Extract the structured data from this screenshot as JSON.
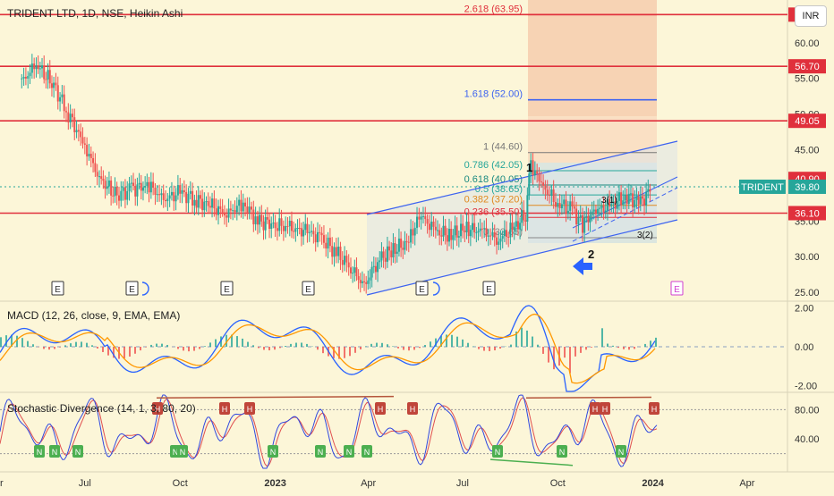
{
  "header": {
    "symbol_line": "TRIDENT LTD, 1D, NSE, Heikin Ashi",
    "currency_button": "INR"
  },
  "panes": {
    "macd_label": "MACD (12, 26, close, 9, EMA, EMA)",
    "stoch_label": "Stochastic Divergence (14, 1, 3, 80, 20)"
  },
  "colors": {
    "background": "#fcf6d8",
    "resistance_line": "#e0303c",
    "price_badge_red": "#e0303c",
    "ticker_badge": "#26a69a",
    "channel_blue": "#3d63f0",
    "macd_line": "#2962ff",
    "signal_line": "#ff9800",
    "hist_up": "#26a69a",
    "hist_down": "#ef5350",
    "stoch_k": "#3048e0",
    "stoch_d": "#e05050",
    "div_bull": "#4caf50",
    "div_bear": "#b5563c"
  },
  "chart_data": {
    "type": "candlestick",
    "symbol": "TRIDENT",
    "exchange": "NSE",
    "interval": "1D",
    "style": "Heikin Ashi",
    "currency": "INR",
    "x_ticks": [
      "Jul",
      "Oct",
      "2023",
      "Apr",
      "Jul",
      "Oct",
      "2024",
      "Apr"
    ],
    "y_ticks": [
      "60.00",
      "55.00",
      "50.00",
      "45.00",
      "40.00",
      "35.00",
      "30.00",
      "25.00"
    ],
    "ylim": [
      24,
      66
    ],
    "price_path": [
      {
        "date": "2022-05-01",
        "close": 54.5
      },
      {
        "date": "2022-05-15",
        "close": 57.0
      },
      {
        "date": "2022-06-01",
        "close": 54.0
      },
      {
        "date": "2022-06-15",
        "close": 50.0
      },
      {
        "date": "2022-07-01",
        "close": 45.5
      },
      {
        "date": "2022-07-15",
        "close": 41.0
      },
      {
        "date": "2022-08-01",
        "close": 38.5
      },
      {
        "date": "2022-08-15",
        "close": 39.5
      },
      {
        "date": "2022-09-01",
        "close": 40.0
      },
      {
        "date": "2022-09-15",
        "close": 38.0
      },
      {
        "date": "2022-10-01",
        "close": 39.0
      },
      {
        "date": "2022-10-15",
        "close": 38.0
      },
      {
        "date": "2022-11-01",
        "close": 37.0
      },
      {
        "date": "2022-11-15",
        "close": 36.0
      },
      {
        "date": "2022-12-01",
        "close": 37.5
      },
      {
        "date": "2022-12-15",
        "close": 35.0
      },
      {
        "date": "2023-01-01",
        "close": 34.5
      },
      {
        "date": "2023-01-15",
        "close": 34.0
      },
      {
        "date": "2023-02-01",
        "close": 33.5
      },
      {
        "date": "2023-02-15",
        "close": 32.5
      },
      {
        "date": "2023-03-01",
        "close": 30.5
      },
      {
        "date": "2023-03-15",
        "close": 28.5
      },
      {
        "date": "2023-03-28",
        "close": 25.8
      },
      {
        "date": "2023-04-10",
        "close": 29.5
      },
      {
        "date": "2023-04-25",
        "close": 31.0
      },
      {
        "date": "2023-05-10",
        "close": 32.0
      },
      {
        "date": "2023-05-20",
        "close": 36.0
      },
      {
        "date": "2023-06-05",
        "close": 33.5
      },
      {
        "date": "2023-06-20",
        "close": 33.0
      },
      {
        "date": "2023-07-05",
        "close": 34.0
      },
      {
        "date": "2023-07-20",
        "close": 33.5
      },
      {
        "date": "2023-08-05",
        "close": 32.5
      },
      {
        "date": "2023-08-20",
        "close": 34.0
      },
      {
        "date": "2023-08-31",
        "close": 36.0
      },
      {
        "date": "2023-09-05",
        "close": 43.0
      },
      {
        "date": "2023-09-15",
        "close": 40.0
      },
      {
        "date": "2023-10-01",
        "close": 37.5
      },
      {
        "date": "2023-10-15",
        "close": 36.5
      },
      {
        "date": "2023-10-25",
        "close": 34.5
      },
      {
        "date": "2023-11-05",
        "close": 36.5
      },
      {
        "date": "2023-11-20",
        "close": 37.0
      },
      {
        "date": "2023-12-05",
        "close": 38.5
      },
      {
        "date": "2023-12-20",
        "close": 37.5
      },
      {
        "date": "2023-12-31",
        "close": 39.8
      }
    ],
    "last_price": "39.80",
    "horizontal_levels": [
      {
        "label": "63.95",
        "value": 63.95
      },
      {
        "label": "56.70",
        "value": 56.7
      },
      {
        "label": "49.05",
        "value": 49.05
      },
      {
        "label": "36.10",
        "value": 36.1
      }
    ],
    "price_badges": [
      "63.95",
      "56.70",
      "49.05",
      "40.90",
      "39.80",
      "36.10"
    ],
    "ticker_badge": "TRIDENT",
    "fibonacci": [
      {
        "label": "2.618 (63.95)",
        "ratio": 2.618,
        "price": 63.95
      },
      {
        "label": "1.618 (52.00)",
        "ratio": 1.618,
        "price": 52.0
      },
      {
        "label": "1 (44.60)",
        "ratio": 1,
        "price": 44.6
      },
      {
        "label": "0.786 (42.05)",
        "ratio": 0.786,
        "price": 42.05
      },
      {
        "label": "0.618 (40.05)",
        "ratio": 0.618,
        "price": 40.05
      },
      {
        "label": "0.5 (38.65)",
        "ratio": 0.5,
        "price": 38.65
      },
      {
        "label": "0.382 (37.20)",
        "ratio": 0.382,
        "price": 37.2
      },
      {
        "label": "0.236 (35.50)",
        "ratio": 0.236,
        "price": 35.5
      },
      {
        "label": "0 (32.65)",
        "ratio": 0,
        "price": 32.65
      }
    ],
    "wave_labels": [
      "1",
      "2",
      "3(1)",
      "3(2)"
    ],
    "earnings_markers": [
      "E",
      "E",
      "E",
      "E",
      "E",
      "E",
      "E"
    ],
    "macd": {
      "title": "MACD (12, 26, close, 9, EMA, EMA)",
      "y_ticks": [
        "2.00",
        "0.00",
        "-2.00"
      ],
      "ylim": [
        -2.3,
        2.3
      ]
    },
    "stochastic": {
      "title": "Stochastic Divergence (14, 1, 3, 80, 20)",
      "y_ticks": [
        "80.00",
        "40.00"
      ],
      "overbought": 80,
      "oversold": 20,
      "signal_labels_high": [
        "H",
        "H",
        "H",
        "H",
        "H",
        "H",
        "H",
        "H",
        "H"
      ],
      "signal_labels_low": [
        "N",
        "N",
        "N",
        "N",
        "N",
        "N",
        "N",
        "N",
        "N",
        "N",
        "N",
        "N"
      ]
    }
  }
}
